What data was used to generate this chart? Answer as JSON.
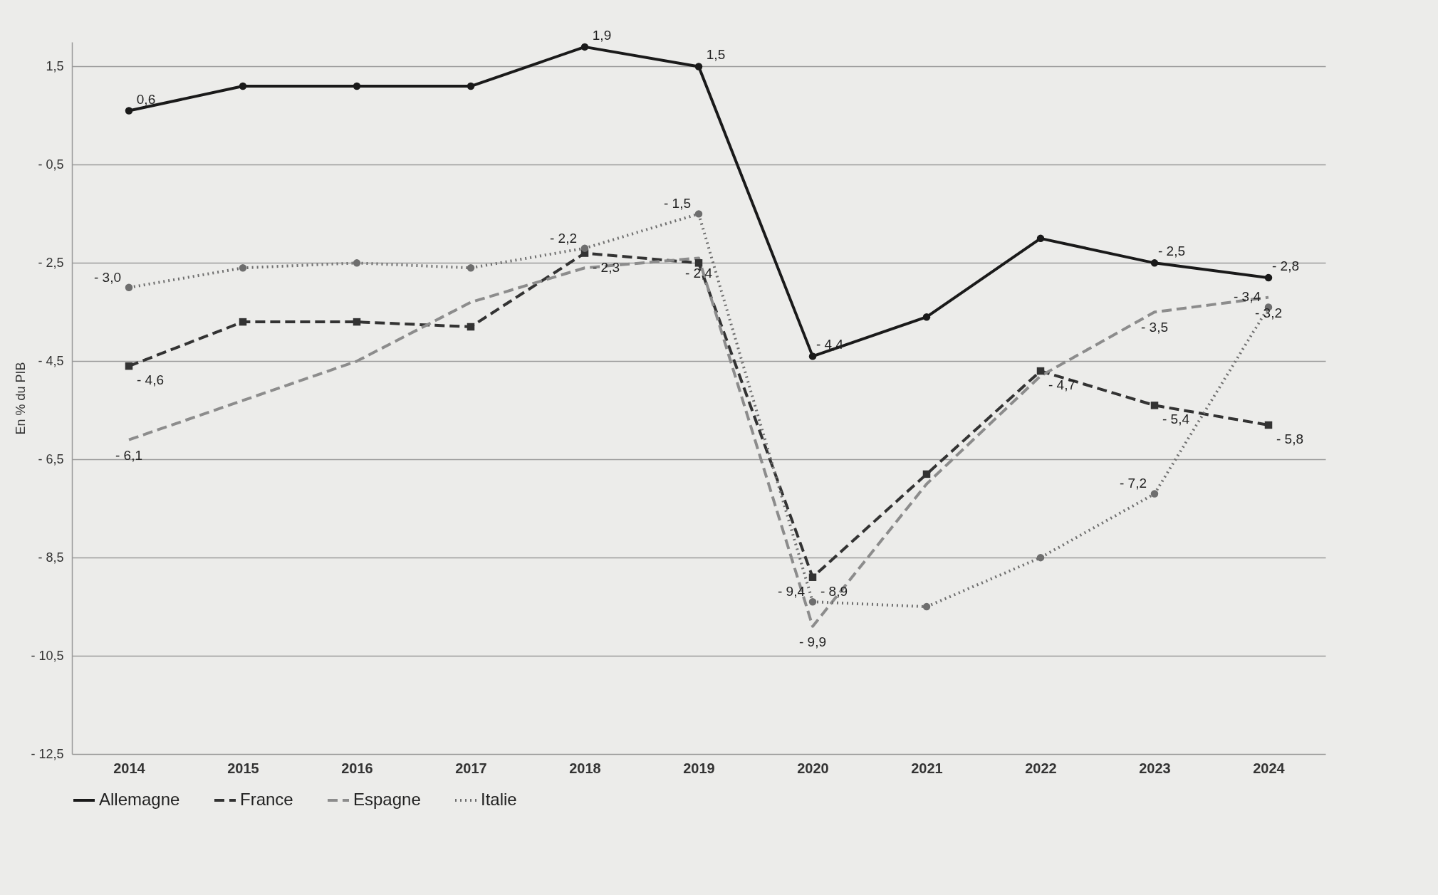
{
  "chart_data": {
    "type": "line",
    "ylabel": "En % du PIB",
    "categories": [
      "2014",
      "2015",
      "2016",
      "2017",
      "2018",
      "2019",
      "2020",
      "2021",
      "2022",
      "2023",
      "2024"
    ],
    "ylim": [
      -12.5,
      2.0
    ],
    "yticks": [
      {
        "value": 1.5,
        "label": "1,5"
      },
      {
        "value": -0.5,
        "label": "- 0,5"
      },
      {
        "value": -2.5,
        "label": "- 2,5"
      },
      {
        "value": -4.5,
        "label": "- 4,5"
      },
      {
        "value": -6.5,
        "label": "- 6,5"
      },
      {
        "value": -8.5,
        "label": "- 8,5"
      },
      {
        "value": -10.5,
        "label": "- 10,5"
      },
      {
        "value": -12.5,
        "label": "- 12,5"
      }
    ],
    "grid": "y",
    "legend": "bottom",
    "series": [
      {
        "name": "Allemagne",
        "color": "#1a1a1a",
        "line_style": "solid",
        "marker": "circle",
        "values": [
          0.6,
          1.1,
          1.1,
          1.1,
          1.9,
          1.5,
          -4.4,
          -3.6,
          -2.0,
          -2.5,
          -2.8
        ],
        "value_labels": [
          "0,6",
          null,
          null,
          null,
          "1,9",
          "1,5",
          "- 4,4",
          null,
          null,
          "- 2,5",
          "- 2,8"
        ]
      },
      {
        "name": "France",
        "color": "#333333",
        "line_style": "dashed",
        "marker": "square",
        "values": [
          -4.6,
          -3.7,
          -3.7,
          -3.8,
          -2.3,
          -2.5,
          -8.9,
          -6.8,
          -4.7,
          -5.4,
          -5.8
        ],
        "value_labels": [
          "- 4,6",
          null,
          null,
          null,
          "- 2,3",
          null,
          "- 8,9",
          null,
          "- 4,7",
          "- 5,4",
          "- 5,8"
        ]
      },
      {
        "name": "Espagne",
        "color": "#8c8c8c",
        "line_style": "dashed",
        "marker": "none",
        "values": [
          -6.1,
          -5.3,
          -4.5,
          -3.3,
          -2.6,
          -2.4,
          -9.9,
          -7.0,
          -4.8,
          -3.5,
          -3.2
        ],
        "value_labels": [
          "- 6,1",
          null,
          null,
          null,
          null,
          "- 2,4",
          "- 9,9",
          null,
          null,
          "- 3,5",
          "- 3,2"
        ]
      },
      {
        "name": "Italie",
        "color": "#6e6e6e",
        "line_style": "dotted",
        "marker": "circle",
        "values": [
          -3.0,
          -2.6,
          -2.5,
          -2.6,
          -2.2,
          -1.5,
          -9.4,
          -9.5,
          -8.5,
          -7.2,
          -3.4
        ],
        "value_labels": [
          "- 3,0",
          null,
          null,
          null,
          "- 2,2",
          "- 1,5",
          "- 9,4",
          null,
          null,
          "- 7,2",
          "- 3,4"
        ]
      }
    ]
  }
}
